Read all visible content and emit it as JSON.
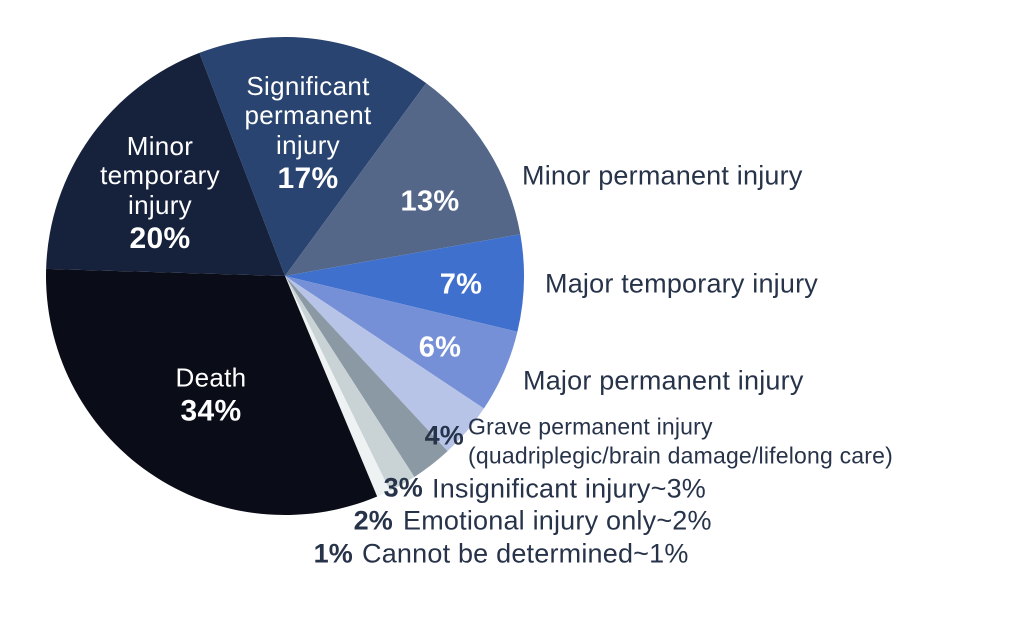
{
  "chart_data": {
    "type": "pie",
    "title": "",
    "unit": "%",
    "values_total_shown": 107,
    "start_angle_deg": -21,
    "legend_position": "none",
    "grid": false,
    "colors": {
      "background": "#ffffff",
      "label_dark": "#273349",
      "label_light": "#ffffff"
    },
    "slices": [
      {
        "label": "Significant permanent injury",
        "label_lines": "Significant\npermanent\ninjury",
        "value": 17,
        "pct": "17%",
        "color": "#294471",
        "label_placement": "inside"
      },
      {
        "label": "Minor permanent injury",
        "value": 13,
        "pct": "13%",
        "color": "#546789",
        "label_placement": "pct-inside-name-right"
      },
      {
        "label": "Major temporary injury",
        "value": 7,
        "pct": "7%",
        "color": "#3f70cd",
        "label_placement": "pct-inside-name-right"
      },
      {
        "label": "Major permanent injury",
        "value": 6,
        "pct": "6%",
        "color": "#7590d7",
        "label_placement": "pct-inside-name-right"
      },
      {
        "label": "Grave permanent injury (quadriplegic/brain damage/lifelong care)",
        "label_lines": "Grave permanent injury\n(quadriplegic/brain damage/lifelong care)",
        "value": 4,
        "pct": "4%",
        "color": "#b7c4e8",
        "label_placement": "outside-right"
      },
      {
        "label": "Insignificant injury~3%",
        "value": 3,
        "pct": "3%",
        "color": "#8b99a4",
        "label_placement": "outside-right"
      },
      {
        "label": "Emotional injury only~2%",
        "value": 2,
        "pct": "2%",
        "color": "#c9d3d6",
        "label_placement": "outside-right"
      },
      {
        "label": "Cannot be determined~1%",
        "value": 1,
        "pct": "1%",
        "color": "#eef2f2",
        "label_placement": "outside-right"
      },
      {
        "label": "Death",
        "label_lines": "Death",
        "value": 34,
        "pct": "34%",
        "color": "#0a0d17",
        "label_placement": "inside"
      },
      {
        "label": "Minor temporary injury",
        "label_lines": "Minor\ntemporary\ninjury",
        "value": 20,
        "pct": "20%",
        "color": "#16213c",
        "label_placement": "inside"
      }
    ]
  }
}
